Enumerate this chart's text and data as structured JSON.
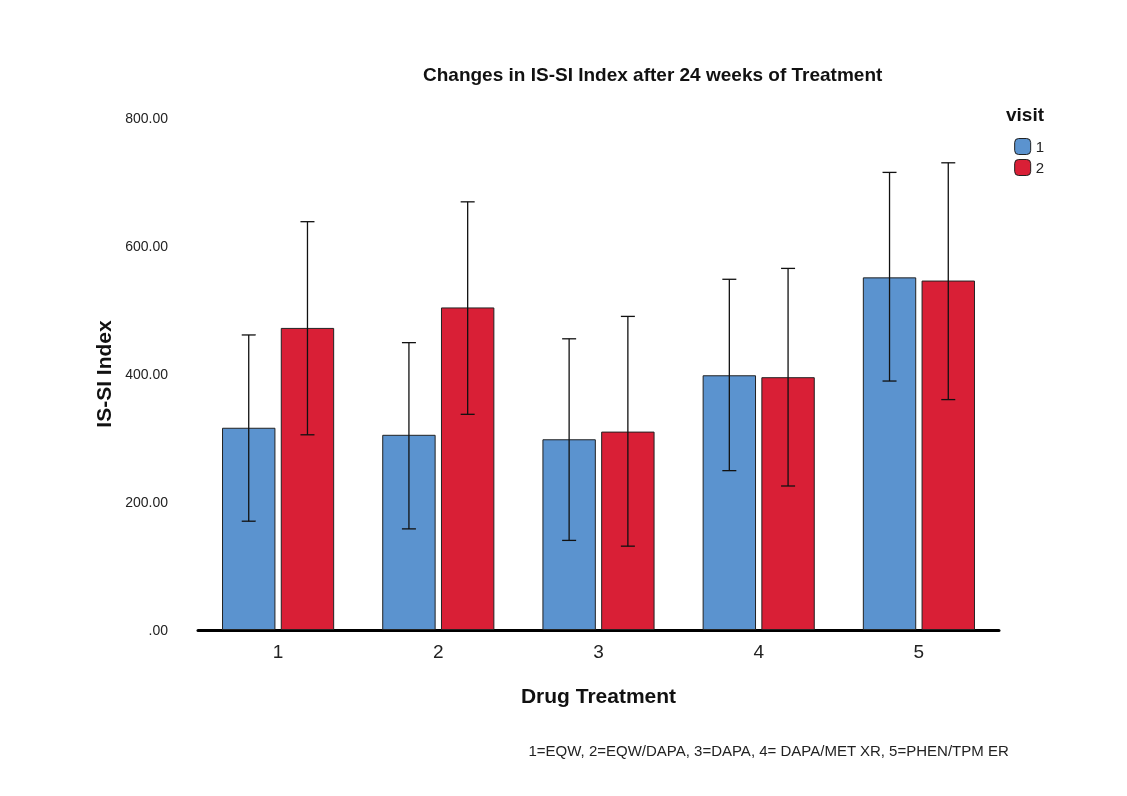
{
  "chart_data": {
    "type": "bar",
    "title": "Changes in IS-SI Index after 24 weeks of Treatment",
    "xlabel": "Drug Treatment",
    "ylabel": "IS-SI Index",
    "legend_title": "visit",
    "legend": "top right",
    "grid": false,
    "categories": [
      "1",
      "2",
      "3",
      "4",
      "5"
    ],
    "series": [
      {
        "name": "1",
        "color": "#5b93cf",
        "values": [
          316,
          305,
          298,
          398,
          551
        ],
        "errors": [
          [
            170,
            461
          ],
          [
            158,
            449
          ],
          [
            140,
            455
          ],
          [
            249,
            548
          ],
          [
            389,
            715
          ]
        ]
      },
      {
        "name": "2",
        "color": "#d91f36",
        "values": [
          472,
          504,
          310,
          395,
          546
        ],
        "errors": [
          [
            305,
            638
          ],
          [
            337,
            669
          ],
          [
            131,
            490
          ],
          [
            225,
            565
          ],
          [
            360,
            730
          ]
        ]
      }
    ],
    "ylim": [
      0,
      800
    ],
    "yticks": [
      {
        "value": 0,
        "label": ".00"
      },
      {
        "value": 200,
        "label": "200.00"
      },
      {
        "value": 400,
        "label": "400.00"
      },
      {
        "value": 600,
        "label": "600.00"
      },
      {
        "value": 800,
        "label": "800.00"
      }
    ],
    "annotations": [
      "1=EQW, 2=EQW/DAPA, 3=DAPA, 4= DAPA/MET XR, 5=PHEN/TPM ER"
    ]
  }
}
